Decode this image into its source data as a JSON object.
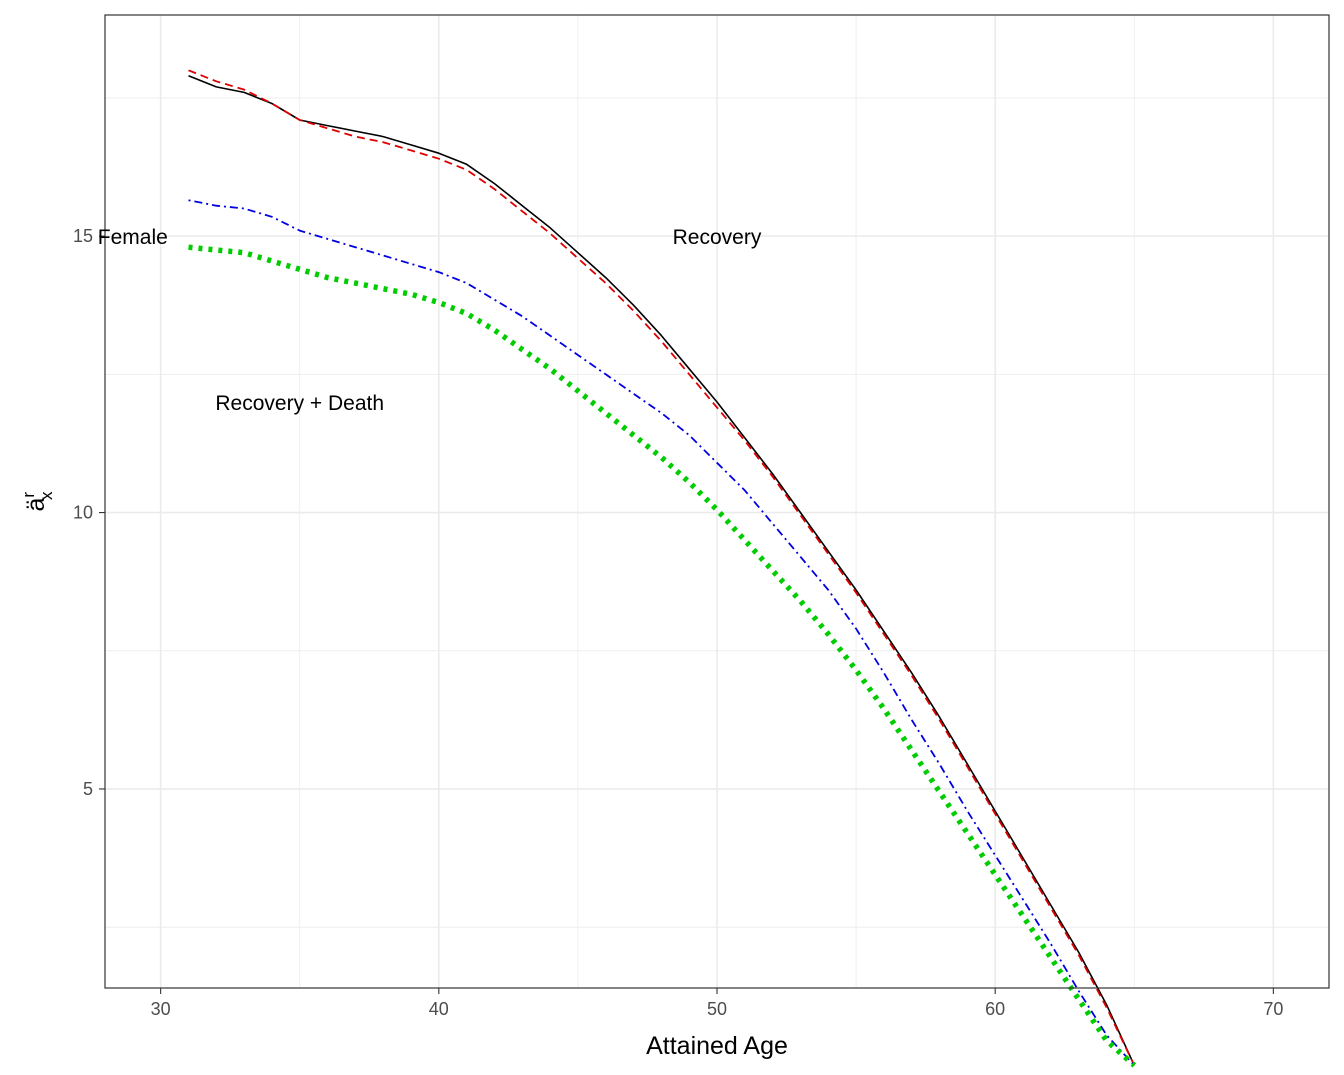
{
  "chart_data": {
    "type": "line",
    "xlabel": "Attained Age",
    "ylabel_main": "ä",
    "ylabel_superscript": "r",
    "ylabel_subscript": "x",
    "xlim": [
      28,
      72
    ],
    "ylim": [
      1.4,
      19.0
    ],
    "xticks": [
      30,
      40,
      50,
      60,
      70
    ],
    "yticks": [
      5,
      10,
      15
    ],
    "grid": true,
    "colors": {
      "grid": "#ebebeb",
      "panel_border": "#333333",
      "tick_label": "#4d4d4d"
    },
    "series": [
      {
        "style": "solid",
        "color": "#000000",
        "points": [
          [
            31,
            17.9
          ],
          [
            32,
            17.7
          ],
          [
            33,
            17.6
          ],
          [
            34,
            17.4
          ],
          [
            35,
            17.1
          ],
          [
            36,
            17.0
          ],
          [
            37,
            16.9
          ],
          [
            38,
            16.8
          ],
          [
            39,
            16.65
          ],
          [
            40,
            16.5
          ],
          [
            41,
            16.3
          ],
          [
            42,
            15.95
          ],
          [
            43,
            15.55
          ],
          [
            44,
            15.15
          ],
          [
            45,
            14.7
          ],
          [
            46,
            14.25
          ],
          [
            47,
            13.75
          ],
          [
            48,
            13.2
          ],
          [
            49,
            12.6
          ],
          [
            50,
            12.0
          ],
          [
            51,
            11.35
          ],
          [
            52,
            10.7
          ],
          [
            53,
            10.0
          ],
          [
            54,
            9.3
          ],
          [
            55,
            8.6
          ],
          [
            56,
            7.85
          ],
          [
            57,
            7.1
          ],
          [
            58,
            6.3
          ],
          [
            59,
            5.45
          ],
          [
            60,
            4.6
          ],
          [
            61,
            3.75
          ],
          [
            62,
            2.9
          ],
          [
            63,
            2.05
          ],
          [
            64,
            1.1
          ],
          [
            65,
            0.0
          ]
        ]
      },
      {
        "style": "dashed",
        "color": "#e00000",
        "points": [
          [
            31,
            18.0
          ],
          [
            32,
            17.8
          ],
          [
            33,
            17.65
          ],
          [
            34,
            17.4
          ],
          [
            35,
            17.1
          ],
          [
            36,
            16.95
          ],
          [
            37,
            16.8
          ],
          [
            38,
            16.7
          ],
          [
            39,
            16.55
          ],
          [
            40,
            16.4
          ],
          [
            41,
            16.2
          ],
          [
            42,
            15.85
          ],
          [
            43,
            15.45
          ],
          [
            44,
            15.05
          ],
          [
            45,
            14.6
          ],
          [
            46,
            14.15
          ],
          [
            47,
            13.65
          ],
          [
            48,
            13.1
          ],
          [
            49,
            12.5
          ],
          [
            50,
            11.9
          ],
          [
            51,
            11.3
          ],
          [
            52,
            10.65
          ],
          [
            53,
            9.95
          ],
          [
            54,
            9.25
          ],
          [
            55,
            8.55
          ],
          [
            56,
            7.8
          ],
          [
            57,
            7.05
          ],
          [
            58,
            6.25
          ],
          [
            59,
            5.4
          ],
          [
            60,
            4.55
          ],
          [
            61,
            3.7
          ],
          [
            62,
            2.85
          ],
          [
            63,
            2.0
          ],
          [
            64,
            1.05
          ],
          [
            65,
            0.0
          ]
        ]
      },
      {
        "style": "dotdash",
        "color": "#0000e0",
        "points": [
          [
            31,
            15.65
          ],
          [
            32,
            15.55
          ],
          [
            33,
            15.5
          ],
          [
            34,
            15.35
          ],
          [
            35,
            15.1
          ],
          [
            36,
            14.95
          ],
          [
            37,
            14.8
          ],
          [
            38,
            14.65
          ],
          [
            39,
            14.5
          ],
          [
            40,
            14.35
          ],
          [
            41,
            14.15
          ],
          [
            42,
            13.85
          ],
          [
            43,
            13.55
          ],
          [
            44,
            13.2
          ],
          [
            45,
            12.85
          ],
          [
            46,
            12.5
          ],
          [
            47,
            12.15
          ],
          [
            48,
            11.8
          ],
          [
            49,
            11.4
          ],
          [
            50,
            10.9
          ],
          [
            51,
            10.4
          ],
          [
            52,
            9.8
          ],
          [
            53,
            9.2
          ],
          [
            54,
            8.6
          ],
          [
            55,
            7.9
          ],
          [
            56,
            7.1
          ],
          [
            57,
            6.25
          ],
          [
            58,
            5.45
          ],
          [
            59,
            4.6
          ],
          [
            60,
            3.8
          ],
          [
            61,
            3.0
          ],
          [
            62,
            2.2
          ],
          [
            63,
            1.35
          ],
          [
            64,
            0.55
          ],
          [
            65,
            0.0
          ]
        ]
      },
      {
        "style": "dotted",
        "color": "#00cc00",
        "points": [
          [
            31,
            14.8
          ],
          [
            32,
            14.75
          ],
          [
            33,
            14.7
          ],
          [
            34,
            14.55
          ],
          [
            35,
            14.4
          ],
          [
            36,
            14.25
          ],
          [
            37,
            14.15
          ],
          [
            38,
            14.05
          ],
          [
            39,
            13.95
          ],
          [
            40,
            13.8
          ],
          [
            41,
            13.6
          ],
          [
            42,
            13.3
          ],
          [
            43,
            12.95
          ],
          [
            44,
            12.6
          ],
          [
            45,
            12.2
          ],
          [
            46,
            11.8
          ],
          [
            47,
            11.4
          ],
          [
            48,
            11.0
          ],
          [
            49,
            10.55
          ],
          [
            50,
            10.05
          ],
          [
            51,
            9.5
          ],
          [
            52,
            8.95
          ],
          [
            53,
            8.4
          ],
          [
            54,
            7.8
          ],
          [
            55,
            7.15
          ],
          [
            56,
            6.45
          ],
          [
            57,
            5.7
          ],
          [
            58,
            4.95
          ],
          [
            59,
            4.2
          ],
          [
            60,
            3.45
          ],
          [
            61,
            2.7
          ],
          [
            62,
            1.95
          ],
          [
            63,
            1.2
          ],
          [
            64,
            0.45
          ],
          [
            65,
            0.0
          ]
        ]
      }
    ],
    "annotations": [
      {
        "text": "Female",
        "x": 29.0,
        "y": 15.0
      },
      {
        "text": "Recovery",
        "x": 50.0,
        "y": 15.0
      },
      {
        "text": "Recovery + Death",
        "x": 35.0,
        "y": 12.0
      }
    ]
  }
}
